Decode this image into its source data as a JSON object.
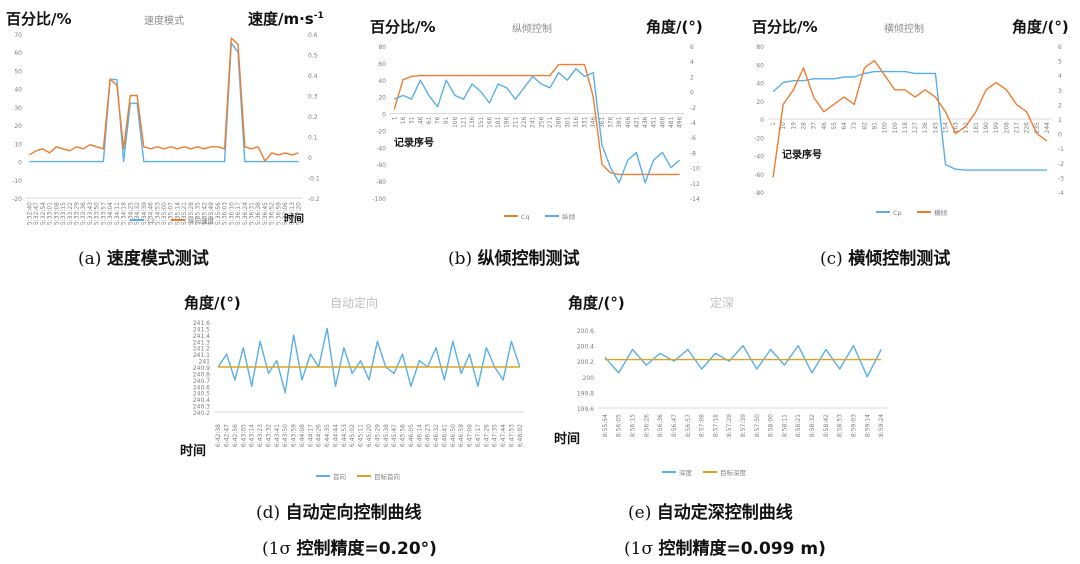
{
  "panels": {
    "a": {
      "label_left": "百分比/%",
      "title": "速度模式",
      "label_right": "速度/m·s",
      "label_right_sup": "-1",
      "xlabel": "时间",
      "caption_id": "(a)",
      "caption": "速度模式测试"
    },
    "b": {
      "label_left": "百分比/%",
      "title": "纵倾控制",
      "label_right": "角度/(°)",
      "xlabel": "记录序号",
      "caption_id": "(b)",
      "caption": "纵倾控制测试"
    },
    "c": {
      "label_left": "百分比/%",
      "title": "横倾控制",
      "label_right": "角度/(°)",
      "xlabel": "记录序号",
      "caption_id": "(c)",
      "caption": "横倾控制测试"
    },
    "d": {
      "label_left": "角度/(°)",
      "title": "自动定向",
      "xlabel": "时间",
      "caption_id": "(d)",
      "caption": "自动定向控制曲线",
      "precision_prefix": "(1σ",
      "precision": "控制精度=0.20°)"
    },
    "e": {
      "label_left": "角度/(°)",
      "title": "定深",
      "xlabel": "时间",
      "caption_id": "(e)",
      "caption": "自动定深控制曲线",
      "precision_prefix": "(1σ",
      "precision": "控制精度=0.099 m)"
    }
  },
  "colors": {
    "blue": "#5aafe6",
    "orange": "#ed7d31",
    "gold": "#d9a520",
    "axis": "#d9d9d9",
    "tick": "#7f7f7f"
  },
  "chart_data": [
    {
      "id": "a",
      "type": "line",
      "x": [
        "5:32:40",
        "5:32:47",
        "5:32:54",
        "5:33:01",
        "5:33:08",
        "5:33:15",
        "5:33:22",
        "5:33:29",
        "5:33:36",
        "5:33:43",
        "5:33:50",
        "5:33:57",
        "5:34:04",
        "5:34:11",
        "5:34:18",
        "5:34:25",
        "5:34:32",
        "5:34:39",
        "5:34:46",
        "5:34:53",
        "5:35:00",
        "5:35:07",
        "5:35:14",
        "5:35:21",
        "5:35:28",
        "5:35:35",
        "5:35:42",
        "5:35:49",
        "5:35:56",
        "5:36:03",
        "5:36:10",
        "5:36:17",
        "5:36:24",
        "5:36:31",
        "5:36:38",
        "5:36:45",
        "5:36:52",
        "5:36:59",
        "5:37:06",
        "5:37:13",
        "5:37:20"
      ],
      "yticks_left": [
        -20,
        -10,
        0,
        10,
        20,
        30,
        40,
        50,
        60,
        70
      ],
      "yticks_right": [
        -0.2,
        -0.1,
        0,
        0.1,
        0.2,
        0.3,
        0.4,
        0.5,
        0.6
      ],
      "ylim_left": [
        -20,
        70
      ],
      "ylim_right": [
        -0.2,
        0.6
      ],
      "series": [
        {
          "name": "Cz",
          "values": [
            0,
            0,
            0,
            0,
            0,
            0,
            0,
            0,
            0,
            0,
            0,
            0,
            45,
            45,
            0,
            32,
            32,
            0,
            0,
            0,
            0,
            0,
            0,
            0,
            0,
            0,
            0,
            0,
            0,
            0,
            65,
            60,
            0,
            0,
            0,
            0,
            0,
            0,
            0,
            0,
            0
          ]
        },
        {
          "name": "纵向速度",
          "values": [
            0.01,
            0.03,
            0.04,
            0.02,
            0.05,
            0.04,
            0.03,
            0.05,
            0.04,
            0.06,
            0.05,
            0.04,
            0.38,
            0.35,
            0.04,
            0.3,
            0.3,
            0.05,
            0.04,
            0.05,
            0.04,
            0.05,
            0.04,
            0.05,
            0.04,
            0.05,
            0.04,
            0.05,
            0.05,
            0.04,
            0.58,
            0.55,
            0.05,
            0.04,
            0.05,
            -0.02,
            0.02,
            0.01,
            0.02,
            0.01,
            0.02
          ]
        }
      ]
    },
    {
      "id": "b",
      "type": "line",
      "x": [
        1,
        16,
        31,
        46,
        61,
        76,
        91,
        106,
        121,
        136,
        151,
        166,
        181,
        196,
        211,
        226,
        241,
        256,
        271,
        286,
        301,
        316,
        331,
        346,
        361,
        376,
        391,
        406,
        421,
        436,
        451,
        466,
        481,
        496
      ],
      "yticks_left": [
        -100,
        -80,
        -60,
        -40,
        -20,
        0,
        20,
        40,
        60,
        80
      ],
      "yticks_right": [
        -14,
        -12,
        -10,
        -8,
        -6,
        -4,
        -2,
        0,
        2,
        4,
        6
      ],
      "ylim_left": [
        -100,
        80
      ],
      "ylim_right": [
        -14,
        6
      ],
      "series": [
        {
          "name": "Cq",
          "values": [
            5,
            40,
            44,
            45,
            45,
            45,
            45,
            45,
            45,
            45,
            45,
            45,
            45,
            45,
            45,
            45,
            45,
            45,
            45,
            58,
            58,
            58,
            58,
            20,
            -60,
            -70,
            -72,
            -72,
            -72,
            -72,
            -72,
            -72,
            -72,
            -72
          ]
        },
        {
          "name": "纵倾",
          "values": [
            -1,
            -0.5,
            -1,
            1.5,
            -0.5,
            -2,
            1.5,
            -0.5,
            -1,
            1,
            0,
            -1.5,
            1,
            0.5,
            -1,
            0.5,
            2,
            1,
            0.5,
            2.5,
            1.5,
            3,
            2,
            2.5,
            -7,
            -10,
            -12,
            -9,
            -8,
            -12,
            -9,
            -8,
            -10,
            -9
          ]
        }
      ]
    },
    {
      "id": "c",
      "type": "line",
      "x": [
        1,
        10,
        19,
        28,
        37,
        46,
        55,
        64,
        73,
        82,
        91,
        100,
        109,
        118,
        127,
        136,
        145,
        154,
        163,
        172,
        181,
        190,
        199,
        208,
        217,
        226,
        235,
        244
      ],
      "yticks_left": [
        -80,
        -60,
        -40,
        -20,
        0,
        20,
        40,
        60,
        80
      ],
      "yticks_right": [
        -4,
        -3,
        -2,
        -1,
        0,
        1,
        2,
        3,
        4,
        5,
        6
      ],
      "ylim_left": [
        -80,
        80
      ],
      "ylim_right": [
        -4,
        6
      ],
      "series": [
        {
          "name": "Cp",
          "values": [
            30,
            40,
            42,
            42,
            44,
            44,
            44,
            46,
            46,
            50,
            52,
            52,
            52,
            52,
            50,
            50,
            50,
            -50,
            -55,
            -56,
            -56,
            -56,
            -56,
            -56,
            -56,
            -56,
            -56,
            -56
          ]
        },
        {
          "name": "横倾",
          "values": [
            -3,
            2,
            3,
            4.5,
            2.5,
            1.5,
            2,
            2.5,
            2,
            4.5,
            5,
            4,
            3,
            3,
            2.5,
            3,
            2.5,
            1.5,
            0,
            0.5,
            1.5,
            3,
            3.5,
            3,
            2,
            1.5,
            0,
            -0.5
          ]
        }
      ]
    },
    {
      "id": "d",
      "type": "line",
      "x": [
        "6:42:38",
        "6:42:47",
        "6:42:56",
        "6:43:05",
        "6:43:14",
        "6:43:23",
        "6:43:32",
        "6:43:41",
        "6:43:50",
        "6:43:59",
        "6:44:08",
        "6:44:17",
        "6:44:26",
        "6:44:35",
        "6:44:44",
        "6:44:53",
        "6:45:02",
        "6:45:11",
        "6:45:20",
        "6:45:29",
        "6:45:38",
        "6:45:47",
        "6:45:56",
        "6:46:05",
        "6:46:14",
        "6:46:23",
        "6:46:32",
        "6:46:41",
        "6:46:50",
        "6:46:59",
        "6:47:08",
        "6:47:17",
        "6:47:26",
        "6:47:35",
        "6:47:44",
        "6:47:53",
        "6:48:02"
      ],
      "yticks_left": [
        240.2,
        240.3,
        240.4,
        240.5,
        240.6,
        240.7,
        240.8,
        240.9,
        241,
        241.1,
        241.2,
        241.3,
        241.4,
        241.5,
        241.6
      ],
      "ylim": [
        240.2,
        241.6
      ],
      "series": [
        {
          "name": "首向",
          "values": [
            240.9,
            241.1,
            240.7,
            241.2,
            240.6,
            241.3,
            240.8,
            241.0,
            240.5,
            241.4,
            240.7,
            241.1,
            240.9,
            241.5,
            240.6,
            241.2,
            240.8,
            241.0,
            240.7,
            241.3,
            240.9,
            240.8,
            241.1,
            240.6,
            241.0,
            240.9,
            241.2,
            240.7,
            241.3,
            240.8,
            241.1,
            240.6,
            241.2,
            240.9,
            240.7,
            241.3,
            240.9
          ]
        },
        {
          "name": "目标首向",
          "values": [
            240.9,
            240.9,
            240.9,
            240.9,
            240.9,
            240.9,
            240.9,
            240.9,
            240.9,
            240.9,
            240.9,
            240.9,
            240.9,
            240.9,
            240.9,
            240.9,
            240.9,
            240.9,
            240.9,
            240.9,
            240.9,
            240.9,
            240.9,
            240.9,
            240.9,
            240.9,
            240.9,
            240.9,
            240.9,
            240.9,
            240.9,
            240.9,
            240.9,
            240.9,
            240.9,
            240.9,
            240.9
          ]
        }
      ]
    },
    {
      "id": "e",
      "type": "line",
      "x": [
        "8:55:54",
        "8:56:05",
        "8:56:15",
        "8:56:26",
        "8:56:36",
        "8:56:47",
        "8:56:57",
        "8:57:08",
        "8:57:18",
        "8:57:29",
        "8:57:39",
        "8:57:50",
        "8:58:00",
        "8:58:11",
        "8:58:21",
        "8:58:32",
        "8:58:42",
        "8:58:53",
        "8:59:03",
        "8:59:14",
        "8:59:24"
      ],
      "yticks_left": [
        199.6,
        199.8,
        200,
        200.2,
        200.4,
        200.6
      ],
      "ylim": [
        199.6,
        200.6
      ],
      "series": [
        {
          "name": "深度",
          "values": [
            200.25,
            200.05,
            200.35,
            200.15,
            200.3,
            200.2,
            200.35,
            200.1,
            200.3,
            200.2,
            200.4,
            200.1,
            200.35,
            200.15,
            200.4,
            200.05,
            200.35,
            200.1,
            200.4,
            200.0,
            200.35
          ]
        },
        {
          "name": "目标深度",
          "values": [
            200.22,
            200.22,
            200.22,
            200.22,
            200.22,
            200.22,
            200.22,
            200.22,
            200.22,
            200.22,
            200.22,
            200.22,
            200.22,
            200.22,
            200.22,
            200.22,
            200.22,
            200.22,
            200.22,
            200.22,
            200.22
          ]
        }
      ]
    }
  ]
}
